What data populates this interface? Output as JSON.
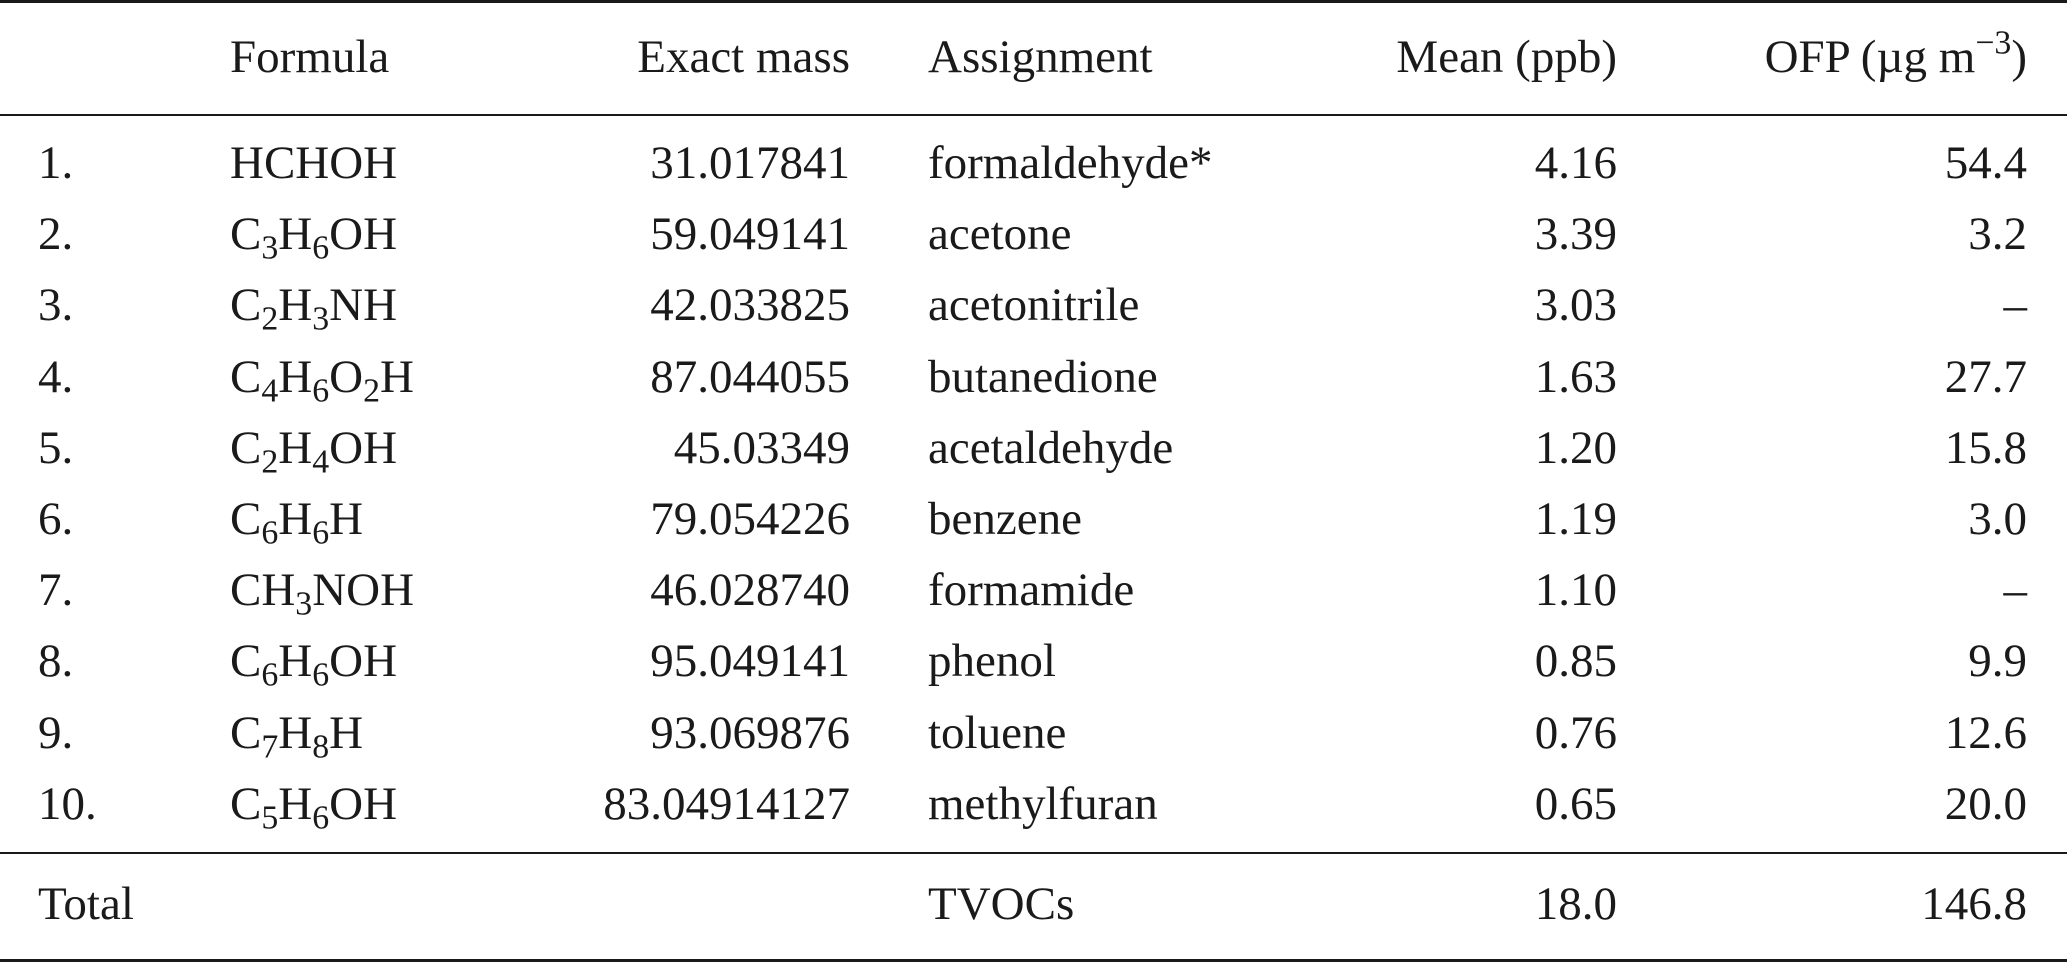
{
  "table": {
    "headers": {
      "index": "",
      "formula": "Formula",
      "exact_mass": "Exact mass",
      "assignment": "Assignment",
      "mean": "Mean (ppb)",
      "ofp_prefix": "OFP (µg m",
      "ofp_exp": "−3",
      "ofp_suffix": ")"
    },
    "rows": [
      {
        "index": "1.",
        "formula": [
          {
            "t": "HCHOH"
          }
        ],
        "exact_mass": "31.017841",
        "assignment": "formaldehyde*",
        "mean": "4.16",
        "ofp": "54.4"
      },
      {
        "index": "2.",
        "formula": [
          {
            "t": "C"
          },
          {
            "s": "3"
          },
          {
            "t": "H"
          },
          {
            "s": "6"
          },
          {
            "t": "OH"
          }
        ],
        "exact_mass": "59.049141",
        "assignment": "acetone",
        "mean": "3.39",
        "ofp": "3.2"
      },
      {
        "index": "3.",
        "formula": [
          {
            "t": "C"
          },
          {
            "s": "2"
          },
          {
            "t": "H"
          },
          {
            "s": "3"
          },
          {
            "t": "NH"
          }
        ],
        "exact_mass": "42.033825",
        "assignment": "acetonitrile",
        "mean": "3.03",
        "ofp": "–"
      },
      {
        "index": "4.",
        "formula": [
          {
            "t": "C"
          },
          {
            "s": "4"
          },
          {
            "t": "H"
          },
          {
            "s": "6"
          },
          {
            "t": "O"
          },
          {
            "s": "2"
          },
          {
            "t": "H"
          }
        ],
        "exact_mass": "87.044055",
        "assignment": "butanedione",
        "mean": "1.63",
        "ofp": "27.7"
      },
      {
        "index": "5.",
        "formula": [
          {
            "t": "C"
          },
          {
            "s": "2"
          },
          {
            "t": "H"
          },
          {
            "s": "4"
          },
          {
            "t": "OH"
          }
        ],
        "exact_mass": "45.03349",
        "assignment": "acetaldehyde",
        "mean": "1.20",
        "ofp": "15.8"
      },
      {
        "index": "6.",
        "formula": [
          {
            "t": "C"
          },
          {
            "s": "6"
          },
          {
            "t": "H"
          },
          {
            "s": "6"
          },
          {
            "t": "H"
          }
        ],
        "exact_mass": "79.054226",
        "assignment": "benzene",
        "mean": "1.19",
        "ofp": "3.0"
      },
      {
        "index": "7.",
        "formula": [
          {
            "t": "CH"
          },
          {
            "s": "3"
          },
          {
            "t": "NOH"
          }
        ],
        "exact_mass": "46.028740",
        "assignment": "formamide",
        "mean": "1.10",
        "ofp": "–"
      },
      {
        "index": "8.",
        "formula": [
          {
            "t": "C"
          },
          {
            "s": "6"
          },
          {
            "t": "H"
          },
          {
            "s": "6"
          },
          {
            "t": "OH"
          }
        ],
        "exact_mass": "95.049141",
        "assignment": "phenol",
        "mean": "0.85",
        "ofp": "9.9"
      },
      {
        "index": "9.",
        "formula": [
          {
            "t": "C"
          },
          {
            "s": "7"
          },
          {
            "t": "H"
          },
          {
            "s": "8"
          },
          {
            "t": "H"
          }
        ],
        "exact_mass": "93.069876",
        "assignment": "toluene",
        "mean": "0.76",
        "ofp": "12.6"
      },
      {
        "index": "10.",
        "formula": [
          {
            "t": "C"
          },
          {
            "s": "5"
          },
          {
            "t": "H"
          },
          {
            "s": "6"
          },
          {
            "t": "OH"
          }
        ],
        "exact_mass": "83.04914127",
        "assignment": "methylfuran",
        "mean": "0.65",
        "ofp": "20.0"
      }
    ],
    "total": {
      "label": "Total",
      "assignment": "TVOCs",
      "mean": "18.0",
      "ofp": "146.8"
    }
  }
}
